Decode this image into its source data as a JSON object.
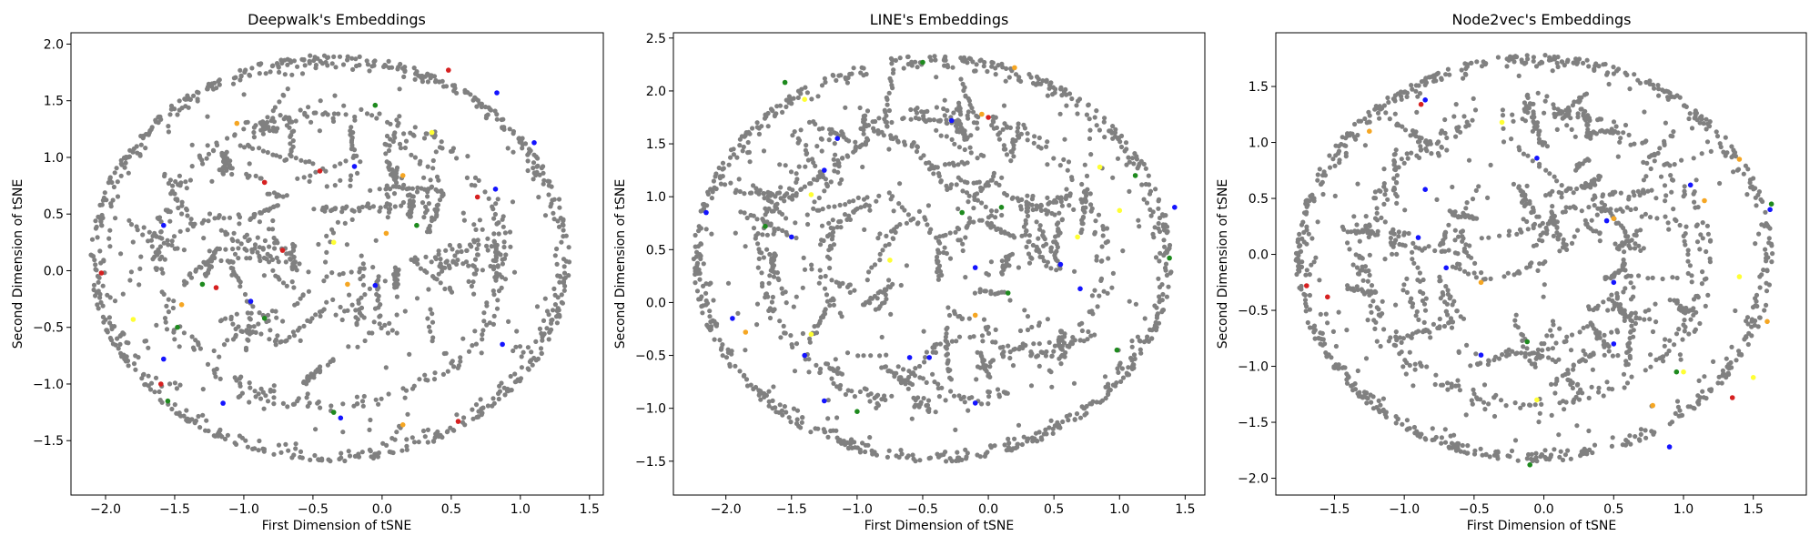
{
  "figure": {
    "background": "#ffffff"
  },
  "point_colors": {
    "base": "#808080",
    "highlights": [
      "#1414ff",
      "#d62020",
      "#1e8a1e",
      "#f5a623",
      "#ffff33"
    ]
  },
  "chart_data": [
    {
      "type": "scatter",
      "title": "Deepwalk's Embeddings",
      "xlabel": "First Dimension of tSNE",
      "ylabel": "Second Dimension of tSNE",
      "xlim": [
        -2.25,
        1.6
      ],
      "ylim": [
        -1.98,
        2.1
      ],
      "xticks": [
        -2.0,
        -1.5,
        -1.0,
        -0.5,
        0.0,
        0.5,
        1.0,
        1.5
      ],
      "xtick_labels": [
        "−2.0",
        "−1.5",
        "−1.0",
        "−0.5",
        "0.0",
        "0.5",
        "1.0",
        "1.5"
      ],
      "yticks": [
        -1.5,
        -1.0,
        -0.5,
        0.0,
        0.5,
        1.0,
        1.5,
        2.0
      ],
      "ytick_labels": [
        "−1.5",
        "−1.0",
        "−0.5",
        "0.0",
        "0.5",
        "1.0",
        "1.5",
        "2.0"
      ],
      "grid": false,
      "point_count_estimate": 1500,
      "highlighted_points": [
        {
          "x": 0.48,
          "y": 1.77,
          "color": "#d62020"
        },
        {
          "x": 0.83,
          "y": 1.57,
          "color": "#1414ff"
        },
        {
          "x": -1.05,
          "y": 1.3,
          "color": "#f5a623"
        },
        {
          "x": -0.05,
          "y": 1.46,
          "color": "#1e8a1e"
        },
        {
          "x": 0.36,
          "y": 1.22,
          "color": "#ffff33"
        },
        {
          "x": 1.1,
          "y": 1.13,
          "color": "#1414ff"
        },
        {
          "x": -0.45,
          "y": 0.88,
          "color": "#d62020"
        },
        {
          "x": -0.2,
          "y": 0.92,
          "color": "#1414ff"
        },
        {
          "x": -0.85,
          "y": 0.78,
          "color": "#d62020"
        },
        {
          "x": 0.82,
          "y": 0.72,
          "color": "#1414ff"
        },
        {
          "x": 0.69,
          "y": 0.65,
          "color": "#d62020"
        },
        {
          "x": 0.15,
          "y": 0.84,
          "color": "#f5a623"
        },
        {
          "x": -1.58,
          "y": 0.4,
          "color": "#1414ff"
        },
        {
          "x": -0.72,
          "y": 0.18,
          "color": "#d62020"
        },
        {
          "x": 0.25,
          "y": 0.4,
          "color": "#1e8a1e"
        },
        {
          "x": 0.03,
          "y": 0.33,
          "color": "#f5a623"
        },
        {
          "x": -0.35,
          "y": 0.25,
          "color": "#ffff33"
        },
        {
          "x": -2.03,
          "y": -0.02,
          "color": "#d62020"
        },
        {
          "x": -1.3,
          "y": -0.12,
          "color": "#1e8a1e"
        },
        {
          "x": -1.2,
          "y": -0.15,
          "color": "#d62020"
        },
        {
          "x": -0.95,
          "y": -0.27,
          "color": "#1414ff"
        },
        {
          "x": -0.25,
          "y": -0.12,
          "color": "#f5a623"
        },
        {
          "x": -0.05,
          "y": -0.13,
          "color": "#1414ff"
        },
        {
          "x": -1.45,
          "y": -0.3,
          "color": "#f5a623"
        },
        {
          "x": -1.48,
          "y": -0.5,
          "color": "#1e8a1e"
        },
        {
          "x": -1.8,
          "y": -0.43,
          "color": "#ffff33"
        },
        {
          "x": -0.85,
          "y": -0.42,
          "color": "#1e8a1e"
        },
        {
          "x": 0.87,
          "y": -0.65,
          "color": "#1414ff"
        },
        {
          "x": -1.58,
          "y": -0.78,
          "color": "#1414ff"
        },
        {
          "x": -1.6,
          "y": -1.0,
          "color": "#d62020"
        },
        {
          "x": -1.55,
          "y": -1.15,
          "color": "#1e8a1e"
        },
        {
          "x": -1.15,
          "y": -1.17,
          "color": "#1414ff"
        },
        {
          "x": -0.35,
          "y": -1.25,
          "color": "#1e8a1e"
        },
        {
          "x": -0.3,
          "y": -1.3,
          "color": "#1414ff"
        },
        {
          "x": 0.55,
          "y": -1.33,
          "color": "#d62020"
        },
        {
          "x": 0.15,
          "y": -1.36,
          "color": "#f5a623"
        }
      ]
    },
    {
      "type": "scatter",
      "title": "LINE's Embeddings",
      "xlabel": "First Dimension of tSNE",
      "ylabel": "Second Dimension of tSNE",
      "xlim": [
        -2.4,
        1.65
      ],
      "ylim": [
        -1.82,
        2.55
      ],
      "xticks": [
        -2.0,
        -1.5,
        -1.0,
        -0.5,
        0.0,
        0.5,
        1.0,
        1.5
      ],
      "xtick_labels": [
        "−2.0",
        "−1.5",
        "−1.0",
        "−0.5",
        "0.0",
        "0.5",
        "1.0",
        "1.5"
      ],
      "yticks": [
        -1.5,
        -1.0,
        -0.5,
        0.0,
        0.5,
        1.0,
        1.5,
        2.0,
        2.5
      ],
      "ytick_labels": [
        "−1.5",
        "−1.0",
        "−0.5",
        "0.0",
        "0.5",
        "1.0",
        "1.5",
        "2.0",
        "2.5"
      ],
      "grid": false,
      "point_count_estimate": 1500,
      "highlighted_points": [
        {
          "x": -0.5,
          "y": 2.27,
          "color": "#1e8a1e"
        },
        {
          "x": -1.55,
          "y": 2.08,
          "color": "#1e8a1e"
        },
        {
          "x": -1.4,
          "y": 1.92,
          "color": "#ffff33"
        },
        {
          "x": 0.2,
          "y": 2.22,
          "color": "#f5a623"
        },
        {
          "x": -0.28,
          "y": 1.72,
          "color": "#1414ff"
        },
        {
          "x": 0.0,
          "y": 1.75,
          "color": "#d62020"
        },
        {
          "x": -0.05,
          "y": 1.78,
          "color": "#f5a623"
        },
        {
          "x": -1.15,
          "y": 1.55,
          "color": "#1414ff"
        },
        {
          "x": -1.25,
          "y": 1.25,
          "color": "#1414ff"
        },
        {
          "x": 0.85,
          "y": 1.28,
          "color": "#ffff33"
        },
        {
          "x": 1.12,
          "y": 1.2,
          "color": "#1e8a1e"
        },
        {
          "x": -1.35,
          "y": 1.02,
          "color": "#ffff33"
        },
        {
          "x": -2.15,
          "y": 0.85,
          "color": "#1414ff"
        },
        {
          "x": 1.42,
          "y": 0.9,
          "color": "#1414ff"
        },
        {
          "x": 1.0,
          "y": 0.87,
          "color": "#ffff33"
        },
        {
          "x": 0.1,
          "y": 0.9,
          "color": "#1e8a1e"
        },
        {
          "x": -0.2,
          "y": 0.85,
          "color": "#1e8a1e"
        },
        {
          "x": -1.7,
          "y": 0.72,
          "color": "#1e8a1e"
        },
        {
          "x": -1.5,
          "y": 0.62,
          "color": "#1414ff"
        },
        {
          "x": 0.68,
          "y": 0.62,
          "color": "#ffff33"
        },
        {
          "x": -0.75,
          "y": 0.4,
          "color": "#ffff33"
        },
        {
          "x": 1.38,
          "y": 0.42,
          "color": "#1e8a1e"
        },
        {
          "x": 0.55,
          "y": 0.36,
          "color": "#1414ff"
        },
        {
          "x": -0.1,
          "y": 0.33,
          "color": "#1414ff"
        },
        {
          "x": 0.7,
          "y": 0.13,
          "color": "#1414ff"
        },
        {
          "x": 0.15,
          "y": 0.09,
          "color": "#1e8a1e"
        },
        {
          "x": -0.1,
          "y": -0.12,
          "color": "#f5a623"
        },
        {
          "x": -1.95,
          "y": -0.15,
          "color": "#1414ff"
        },
        {
          "x": -1.85,
          "y": -0.28,
          "color": "#f5a623"
        },
        {
          "x": -1.35,
          "y": -0.3,
          "color": "#ffff33"
        },
        {
          "x": -1.4,
          "y": -0.5,
          "color": "#1414ff"
        },
        {
          "x": -0.45,
          "y": -0.52,
          "color": "#1414ff"
        },
        {
          "x": -0.6,
          "y": -0.52,
          "color": "#1414ff"
        },
        {
          "x": 0.98,
          "y": -0.45,
          "color": "#1e8a1e"
        },
        {
          "x": -1.25,
          "y": -0.93,
          "color": "#1414ff"
        },
        {
          "x": -1.0,
          "y": -1.03,
          "color": "#1e8a1e"
        },
        {
          "x": -0.1,
          "y": -0.95,
          "color": "#1414ff"
        }
      ]
    },
    {
      "type": "scatter",
      "title": "Node2vec's Embeddings",
      "xlabel": "First Dimension of tSNE",
      "ylabel": "Second Dimension of tSNE",
      "xlim": [
        -1.92,
        1.88
      ],
      "ylim": [
        -2.15,
        1.98
      ],
      "xticks": [
        -1.5,
        -1.0,
        -0.5,
        0.0,
        0.5,
        1.0,
        1.5
      ],
      "xtick_labels": [
        "−1.5",
        "−1.0",
        "−0.5",
        "0.0",
        "0.5",
        "1.0",
        "1.5"
      ],
      "yticks": [
        -2.0,
        -1.5,
        -1.0,
        -0.5,
        0.0,
        0.5,
        1.0,
        1.5
      ],
      "ytick_labels": [
        "−2.0",
        "−1.5",
        "−1.0",
        "−0.5",
        "0.0",
        "0.5",
        "1.0",
        "1.5"
      ],
      "grid": false,
      "point_count_estimate": 1500,
      "highlighted_points": [
        {
          "x": -0.88,
          "y": 1.34,
          "color": "#d62020"
        },
        {
          "x": -0.85,
          "y": 1.38,
          "color": "#1414ff"
        },
        {
          "x": -1.25,
          "y": 1.1,
          "color": "#f5a623"
        },
        {
          "x": -0.3,
          "y": 1.18,
          "color": "#ffff33"
        },
        {
          "x": -0.05,
          "y": 0.86,
          "color": "#1414ff"
        },
        {
          "x": 1.4,
          "y": 0.85,
          "color": "#f5a623"
        },
        {
          "x": 1.05,
          "y": 0.62,
          "color": "#1414ff"
        },
        {
          "x": -0.85,
          "y": 0.58,
          "color": "#1414ff"
        },
        {
          "x": 1.63,
          "y": 0.45,
          "color": "#1e8a1e"
        },
        {
          "x": 1.62,
          "y": 0.4,
          "color": "#1414ff"
        },
        {
          "x": 1.15,
          "y": 0.48,
          "color": "#f5a623"
        },
        {
          "x": 0.5,
          "y": 0.32,
          "color": "#f5a623"
        },
        {
          "x": 0.45,
          "y": 0.3,
          "color": "#1414ff"
        },
        {
          "x": -0.9,
          "y": 0.15,
          "color": "#1414ff"
        },
        {
          "x": -0.7,
          "y": -0.12,
          "color": "#1414ff"
        },
        {
          "x": -1.7,
          "y": -0.28,
          "color": "#d62020"
        },
        {
          "x": -1.55,
          "y": -0.38,
          "color": "#d62020"
        },
        {
          "x": -0.45,
          "y": -0.25,
          "color": "#f5a623"
        },
        {
          "x": 0.5,
          "y": -0.25,
          "color": "#1414ff"
        },
        {
          "x": 1.4,
          "y": -0.2,
          "color": "#ffff33"
        },
        {
          "x": 1.6,
          "y": -0.6,
          "color": "#f5a623"
        },
        {
          "x": -0.12,
          "y": -0.78,
          "color": "#1e8a1e"
        },
        {
          "x": 0.5,
          "y": -0.8,
          "color": "#1414ff"
        },
        {
          "x": -0.45,
          "y": -0.9,
          "color": "#1414ff"
        },
        {
          "x": 0.95,
          "y": -1.05,
          "color": "#1e8a1e"
        },
        {
          "x": 1.0,
          "y": -1.05,
          "color": "#ffff33"
        },
        {
          "x": 1.5,
          "y": -1.1,
          "color": "#ffff33"
        },
        {
          "x": -0.05,
          "y": -1.3,
          "color": "#ffff33"
        },
        {
          "x": 0.78,
          "y": -1.35,
          "color": "#f5a623"
        },
        {
          "x": 1.35,
          "y": -1.28,
          "color": "#d62020"
        },
        {
          "x": 0.9,
          "y": -1.72,
          "color": "#1414ff"
        },
        {
          "x": -0.1,
          "y": -1.88,
          "color": "#1e8a1e"
        }
      ]
    }
  ]
}
